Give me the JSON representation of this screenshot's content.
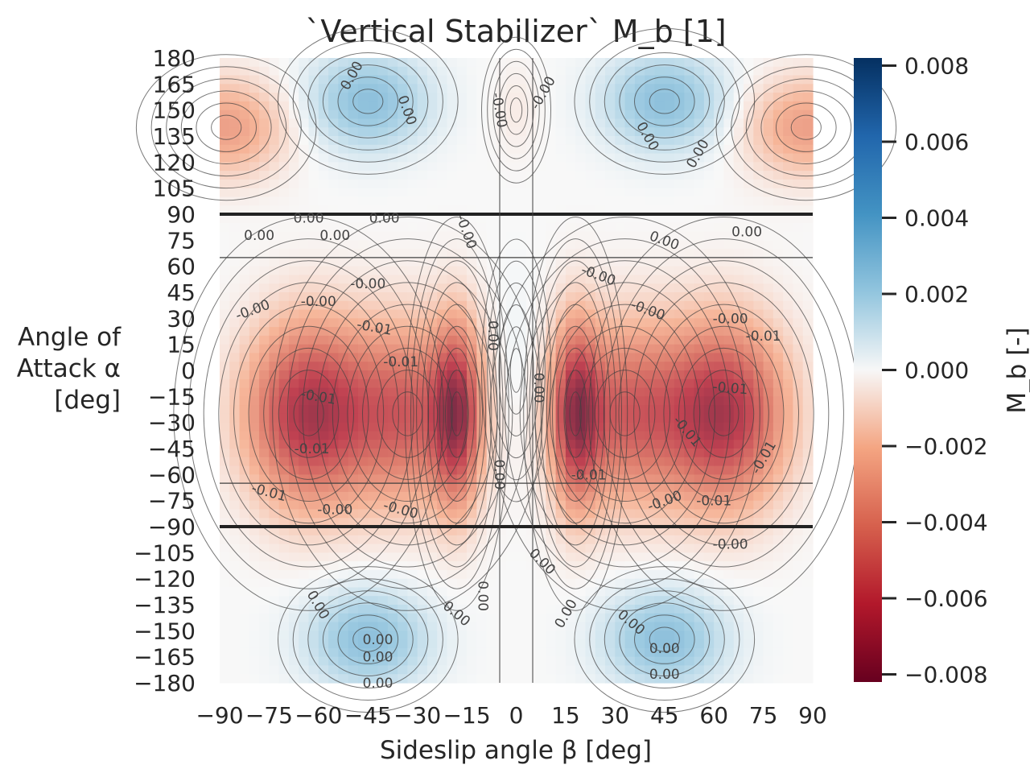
{
  "chart_data": {
    "type": "heatmap",
    "title": "`Vertical Stabilizer` M_b [1]",
    "xlabel": "Sideslip angle β [deg]",
    "ylabel_lines": [
      "Angle of",
      "Attack α",
      "[deg]"
    ],
    "colorbar_label": "M_b [-]",
    "x_range": [
      -90,
      90
    ],
    "y_range": [
      -180,
      180
    ],
    "x_ticks": [
      -90,
      -75,
      -60,
      -45,
      -30,
      -15,
      0,
      15,
      30,
      45,
      60,
      75,
      90
    ],
    "x_tick_labels": [
      "−90",
      "−75",
      "−60",
      "−45",
      "−30",
      "−15",
      "0",
      "15",
      "30",
      "45",
      "60",
      "75",
      "90"
    ],
    "y_ticks": [
      180,
      165,
      150,
      135,
      120,
      105,
      90,
      75,
      60,
      45,
      30,
      15,
      0,
      -15,
      -30,
      -45,
      -60,
      -75,
      -90,
      -105,
      -120,
      -135,
      -150,
      -165,
      -180
    ],
    "y_tick_labels": [
      "180",
      "165",
      "150",
      "135",
      "120",
      "105",
      "90",
      "75",
      "60",
      "45",
      "30",
      "15",
      "0",
      "−15",
      "−30",
      "−45",
      "−60",
      "−75",
      "−90",
      "−105",
      "−120",
      "−135",
      "−150",
      "−165",
      "−180"
    ],
    "color_range": [
      -0.0082,
      0.0082
    ],
    "colorbar_ticks": [
      0.008,
      0.006,
      0.004,
      0.002,
      0.0,
      -0.002,
      -0.004,
      -0.006,
      -0.008
    ],
    "colorbar_tick_labels": [
      "0.008",
      "0.006",
      "0.004",
      "0.002",
      "0.000",
      "−0.002",
      "−0.004",
      "−0.006",
      "−0.008"
    ],
    "colormap": "RdBu",
    "contour_labels": [
      "0.00",
      "-0.00",
      "-0.01"
    ],
    "features": [
      {
        "beta": -63,
        "alpha": -25,
        "value": -0.0068
      },
      {
        "beta": 63,
        "alpha": -25,
        "value": -0.0068
      },
      {
        "beta": -33,
        "alpha": -25,
        "value": -0.0048
      },
      {
        "beta": 33,
        "alpha": -25,
        "value": -0.0048
      },
      {
        "beta": -18,
        "alpha": -25,
        "value": -0.0058
      },
      {
        "beta": 18,
        "alpha": -25,
        "value": -0.0058
      },
      {
        "beta": -45,
        "alpha": 155,
        "value": 0.0028
      },
      {
        "beta": 45,
        "alpha": 155,
        "value": 0.0028
      },
      {
        "beta": -45,
        "alpha": -155,
        "value": 0.0028
      },
      {
        "beta": 45,
        "alpha": -155,
        "value": 0.0028
      },
      {
        "beta": -88,
        "alpha": 140,
        "value": -0.0028
      },
      {
        "beta": 88,
        "alpha": 140,
        "value": -0.0028
      },
      {
        "beta": 0,
        "alpha": 150,
        "value": -0.0004
      },
      {
        "beta": 0,
        "alpha": 0,
        "value": 0.0004
      }
    ]
  },
  "colors": {
    "blue_max": "#053061",
    "red_max": "#67001f",
    "neutral": "#f7f7f7",
    "contour": "#404040",
    "text": "#262626"
  }
}
